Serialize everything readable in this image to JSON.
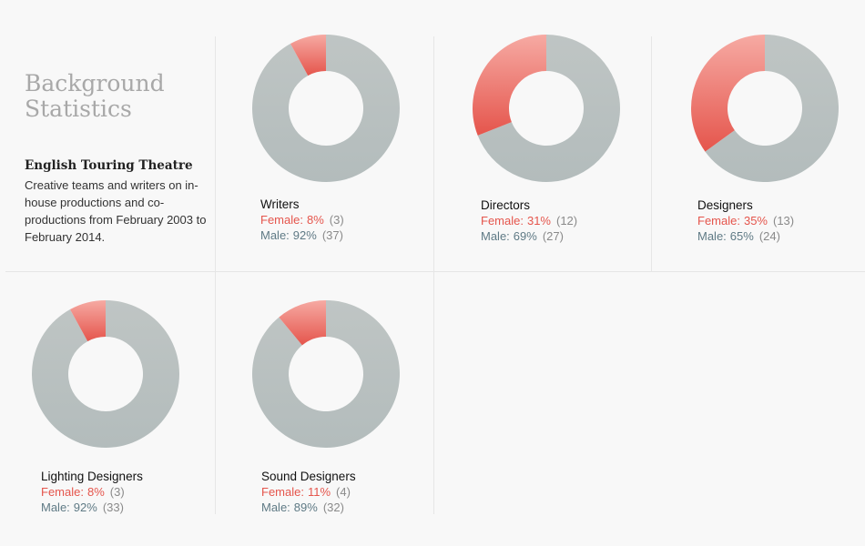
{
  "intro": {
    "heading_line1": "Background",
    "heading_line2": "Statistics",
    "org": "English Touring Theatre",
    "description": "Creative teams and writers on in-house productions and co-productions from February 2003 to February 2014."
  },
  "labels": {
    "female": "Female:",
    "male": "Male:"
  },
  "colors": {
    "female": "#e5554c",
    "male": "#b3bcbc",
    "male_text": "#5f7a85",
    "count": "#8a8a8a"
  },
  "chart_data": [
    {
      "type": "pie",
      "title": "Writers",
      "categories": [
        "Female",
        "Male"
      ],
      "percent": [
        8,
        92
      ],
      "counts": [
        3,
        37
      ],
      "percent_text": [
        "8%",
        "92%"
      ],
      "count_text": [
        "(3)",
        "(37)"
      ]
    },
    {
      "type": "pie",
      "title": "Directors",
      "categories": [
        "Female",
        "Male"
      ],
      "percent": [
        31,
        69
      ],
      "counts": [
        12,
        27
      ],
      "percent_text": [
        "31%",
        "69%"
      ],
      "count_text": [
        "(12)",
        "(27)"
      ]
    },
    {
      "type": "pie",
      "title": "Designers",
      "categories": [
        "Female",
        "Male"
      ],
      "percent": [
        35,
        65
      ],
      "counts": [
        13,
        24
      ],
      "percent_text": [
        "35%",
        "65%"
      ],
      "count_text": [
        "(13)",
        "(24)"
      ]
    },
    {
      "type": "pie",
      "title": "Lighting Designers",
      "categories": [
        "Female",
        "Male"
      ],
      "percent": [
        8,
        92
      ],
      "counts": [
        3,
        33
      ],
      "percent_text": [
        "8%",
        "92%"
      ],
      "count_text": [
        "(3)",
        "(33)"
      ]
    },
    {
      "type": "pie",
      "title": "Sound Designers",
      "categories": [
        "Female",
        "Male"
      ],
      "percent": [
        11,
        89
      ],
      "counts": [
        4,
        32
      ],
      "percent_text": [
        "11%",
        "89%"
      ],
      "count_text": [
        "(4)",
        "(32)"
      ]
    }
  ]
}
